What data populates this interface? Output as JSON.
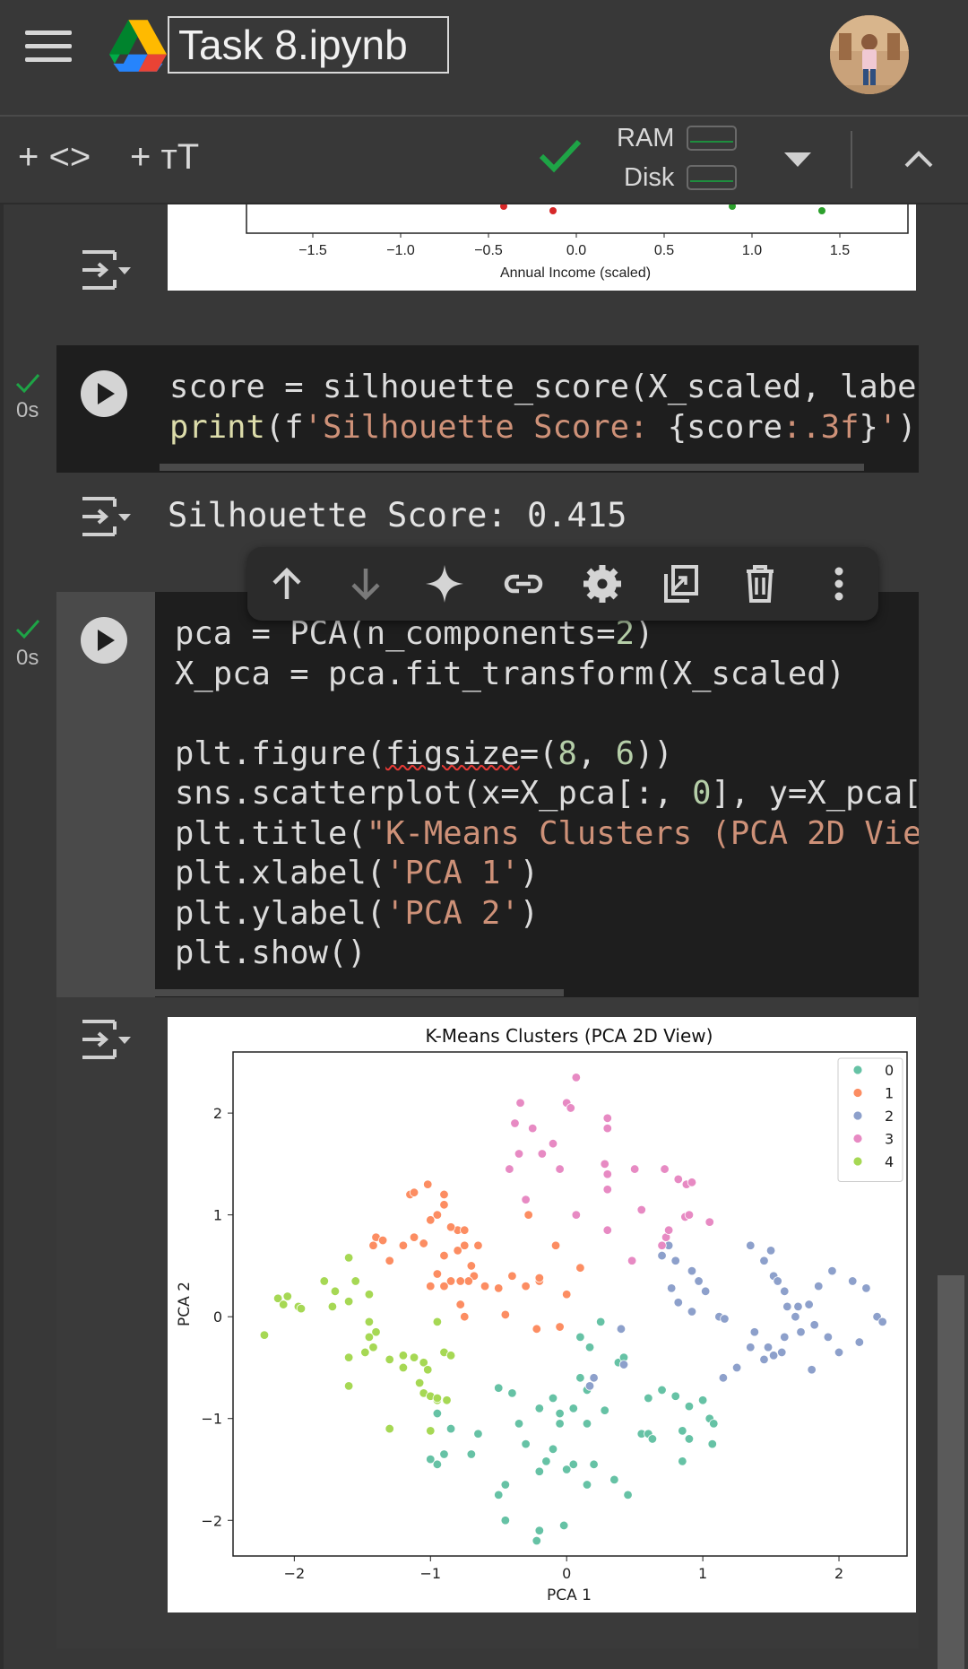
{
  "header": {
    "title": "Task 8.ipynb"
  },
  "toolbar": {
    "add_code": "+ <>",
    "add_text": "+ тT",
    "ram_label": "RAM",
    "disk_label": "Disk"
  },
  "top_output": {
    "xticks": [
      "−1.5",
      "−1.0",
      "−0.5",
      "0.0",
      "0.5",
      "1.0",
      "1.5"
    ],
    "xlabel": "Annual Income (scaled)"
  },
  "cells": [
    {
      "exec_time": "0s",
      "code_lines": [
        "score = silhouette_score(X_scaled, labe",
        "print(f'Silhouette Score: {score:.3f}')"
      ],
      "output": "Silhouette Score: 0.415"
    },
    {
      "exec_time": "0s",
      "code_lines": [
        "pca = PCA(n_components=2)",
        "X_pca = pca.fit_transform(X_scaled)",
        "",
        "plt.figure(figsize=(8, 6))",
        "sns.scatterplot(x=X_pca[:, 0], y=X_pca[",
        "plt.title(\"K-Means Clusters (PCA 2D Vie",
        "plt.xlabel('PCA 1')",
        "plt.ylabel('PCA 2')",
        "plt.show()"
      ]
    }
  ],
  "chart_data": {
    "type": "scatter",
    "title": "K-Means Clusters (PCA 2D View)",
    "xlabel": "PCA 1",
    "ylabel": "PCA 2",
    "xlim": [
      -2.45,
      2.5
    ],
    "ylim": [
      -2.35,
      2.6
    ],
    "xticks": [
      -2,
      -1,
      0,
      1,
      2
    ],
    "yticks": [
      -2,
      -1,
      0,
      1,
      2
    ],
    "xtick_labels": [
      "−2",
      "−1",
      "0",
      "1",
      "2"
    ],
    "ytick_labels": [
      "−2",
      "−1",
      "0",
      "1",
      "2"
    ],
    "grid": false,
    "legend_position": "top-right",
    "series": [
      {
        "name": "0",
        "color": "#66c2a5",
        "points": [
          [
            0.25,
            -0.05
          ],
          [
            0.1,
            -0.2
          ],
          [
            0.17,
            -0.3
          ],
          [
            0.38,
            -0.45
          ],
          [
            0.42,
            -0.4
          ],
          [
            0.1,
            -0.6
          ],
          [
            0.15,
            -0.72
          ],
          [
            -0.1,
            -0.8
          ],
          [
            0.05,
            -0.9
          ],
          [
            -0.5,
            -0.7
          ],
          [
            -0.4,
            -0.75
          ],
          [
            -0.2,
            -0.9
          ],
          [
            -0.05,
            -0.95
          ],
          [
            0.28,
            -0.92
          ],
          [
            0.6,
            -0.8
          ],
          [
            0.8,
            -0.78
          ],
          [
            0.7,
            -0.72
          ],
          [
            0.9,
            -0.88
          ],
          [
            1.0,
            -0.82
          ],
          [
            1.05,
            -1.0
          ],
          [
            1.08,
            -1.05
          ],
          [
            -0.95,
            -0.95
          ],
          [
            -0.85,
            -1.1
          ],
          [
            -0.65,
            -1.15
          ],
          [
            -0.35,
            -1.05
          ],
          [
            -0.05,
            -1.05
          ],
          [
            0.15,
            -1.05
          ],
          [
            0.55,
            -1.15
          ],
          [
            0.85,
            -1.12
          ],
          [
            0.9,
            -1.2
          ],
          [
            1.07,
            -1.25
          ],
          [
            -0.3,
            -1.25
          ],
          [
            -0.1,
            -1.3
          ],
          [
            0.05,
            -1.45
          ],
          [
            0.2,
            -1.45
          ],
          [
            0.35,
            -1.6
          ],
          [
            0.45,
            -1.75
          ],
          [
            0.15,
            -1.65
          ],
          [
            -0.15,
            -1.42
          ],
          [
            -0.2,
            -1.52
          ],
          [
            0.0,
            -1.5
          ],
          [
            -0.45,
            -1.65
          ],
          [
            -0.5,
            -1.75
          ],
          [
            -0.9,
            -1.35
          ],
          [
            -1.0,
            -1.4
          ],
          [
            -0.95,
            -1.45
          ],
          [
            -0.7,
            -1.35
          ],
          [
            -0.2,
            -2.1
          ],
          [
            -0.22,
            -2.2
          ],
          [
            -0.02,
            -2.05
          ],
          [
            -0.45,
            -2.0
          ],
          [
            0.6,
            -1.15
          ],
          [
            0.63,
            -1.2
          ],
          [
            0.85,
            -1.42
          ]
        ]
      },
      {
        "name": "1",
        "color": "#fc8d62",
        "points": [
          [
            -1.15,
            1.2
          ],
          [
            -1.12,
            1.22
          ],
          [
            -1.02,
            1.3
          ],
          [
            -0.9,
            1.2
          ],
          [
            -0.9,
            1.1
          ],
          [
            -0.95,
            1.0
          ],
          [
            -1.0,
            0.95
          ],
          [
            -0.8,
            0.85
          ],
          [
            -0.85,
            0.88
          ],
          [
            -0.75,
            0.85
          ],
          [
            -0.75,
            0.7
          ],
          [
            -0.8,
            0.65
          ],
          [
            -0.65,
            0.7
          ],
          [
            -0.9,
            0.6
          ],
          [
            -1.05,
            0.72
          ],
          [
            -1.12,
            0.78
          ],
          [
            -1.2,
            0.7
          ],
          [
            -1.4,
            0.78
          ],
          [
            -1.42,
            0.7
          ],
          [
            -1.35,
            0.75
          ],
          [
            -1.3,
            0.55
          ],
          [
            -0.7,
            0.5
          ],
          [
            -0.68,
            0.4
          ],
          [
            -0.72,
            0.35
          ],
          [
            -0.78,
            0.35
          ],
          [
            -0.85,
            0.35
          ],
          [
            -0.95,
            0.42
          ],
          [
            -1.0,
            0.3
          ],
          [
            -0.9,
            0.3
          ],
          [
            -0.78,
            0.12
          ],
          [
            -0.6,
            0.3
          ],
          [
            -0.5,
            0.28
          ],
          [
            -0.4,
            0.4
          ],
          [
            -0.3,
            0.3
          ],
          [
            -0.2,
            0.35
          ],
          [
            -0.2,
            0.38
          ],
          [
            -0.45,
            0.02
          ],
          [
            -0.22,
            -0.12
          ],
          [
            -0.28,
            1.0
          ],
          [
            -0.08,
            0.7
          ],
          [
            0.1,
            0.48
          ],
          [
            0.0,
            0.22
          ],
          [
            -0.05,
            -0.1
          ],
          [
            -0.75,
            0.0
          ]
        ]
      },
      {
        "name": "2",
        "color": "#8da0cb",
        "points": [
          [
            0.75,
            0.7
          ],
          [
            0.7,
            0.6
          ],
          [
            0.8,
            0.55
          ],
          [
            0.92,
            0.45
          ],
          [
            0.97,
            0.35
          ],
          [
            1.02,
            0.25
          ],
          [
            0.77,
            0.28
          ],
          [
            0.82,
            0.14
          ],
          [
            0.92,
            0.05
          ],
          [
            1.12,
            0.0
          ],
          [
            1.16,
            -0.02
          ],
          [
            1.45,
            0.55
          ],
          [
            1.5,
            0.65
          ],
          [
            1.52,
            0.4
          ],
          [
            1.55,
            0.35
          ],
          [
            1.6,
            0.25
          ],
          [
            1.62,
            0.1
          ],
          [
            1.35,
            0.7
          ],
          [
            1.68,
            0.0
          ],
          [
            1.7,
            0.1
          ],
          [
            1.78,
            0.12
          ],
          [
            1.85,
            0.3
          ],
          [
            1.95,
            0.45
          ],
          [
            1.82,
            -0.08
          ],
          [
            1.72,
            -0.15
          ],
          [
            1.6,
            -0.2
          ],
          [
            1.58,
            -0.35
          ],
          [
            1.52,
            -0.38
          ],
          [
            1.45,
            -0.42
          ],
          [
            1.48,
            -0.3
          ],
          [
            1.38,
            -0.15
          ],
          [
            1.35,
            -0.3
          ],
          [
            1.25,
            -0.5
          ],
          [
            1.92,
            -0.2
          ],
          [
            2.1,
            0.35
          ],
          [
            2.2,
            0.28
          ],
          [
            2.28,
            0.0
          ],
          [
            2.32,
            -0.05
          ],
          [
            2.0,
            -0.35
          ],
          [
            2.15,
            -0.25
          ],
          [
            1.8,
            -0.52
          ],
          [
            0.4,
            -0.12
          ],
          [
            0.2,
            -0.6
          ],
          [
            0.17,
            -0.68
          ],
          [
            0.42,
            -0.47
          ],
          [
            1.15,
            -0.6
          ]
        ]
      },
      {
        "name": "3",
        "color": "#e78ac3",
        "points": [
          [
            -0.38,
            1.9
          ],
          [
            -0.34,
            2.1
          ],
          [
            -0.25,
            1.85
          ],
          [
            -0.18,
            1.6
          ],
          [
            -0.35,
            1.6
          ],
          [
            -0.1,
            1.7
          ],
          [
            -0.05,
            1.45
          ],
          [
            0.0,
            2.1
          ],
          [
            0.03,
            2.05
          ],
          [
            0.07,
            2.35
          ],
          [
            0.3,
            1.95
          ],
          [
            0.3,
            1.85
          ],
          [
            0.28,
            1.5
          ],
          [
            0.3,
            1.4
          ],
          [
            0.5,
            1.45
          ],
          [
            0.72,
            1.45
          ],
          [
            0.82,
            1.35
          ],
          [
            0.88,
            1.3
          ],
          [
            0.92,
            1.32
          ],
          [
            0.3,
            1.25
          ],
          [
            0.55,
            1.05
          ],
          [
            0.87,
            0.98
          ],
          [
            0.9,
            1.0
          ],
          [
            1.05,
            0.93
          ],
          [
            0.3,
            0.85
          ],
          [
            0.48,
            0.55
          ],
          [
            0.73,
            0.78
          ],
          [
            0.7,
            0.7
          ],
          [
            0.75,
            0.85
          ],
          [
            0.07,
            1.0
          ],
          [
            -0.42,
            1.45
          ],
          [
            -0.3,
            1.15
          ]
        ]
      },
      {
        "name": "4",
        "color": "#a6d854",
        "points": [
          [
            -2.22,
            -0.18
          ],
          [
            -2.12,
            0.18
          ],
          [
            -2.05,
            0.2
          ],
          [
            -2.08,
            0.12
          ],
          [
            -1.97,
            0.1
          ],
          [
            -1.95,
            0.08
          ],
          [
            -1.78,
            0.35
          ],
          [
            -1.7,
            0.25
          ],
          [
            -1.72,
            0.1
          ],
          [
            -1.6,
            0.15
          ],
          [
            -1.6,
            0.58
          ],
          [
            -1.55,
            0.35
          ],
          [
            -1.45,
            0.22
          ],
          [
            -1.45,
            -0.05
          ],
          [
            -1.4,
            -0.15
          ],
          [
            -1.45,
            -0.2
          ],
          [
            -1.42,
            -0.3
          ],
          [
            -1.48,
            -0.35
          ],
          [
            -1.6,
            -0.4
          ],
          [
            -1.3,
            -0.42
          ],
          [
            -1.2,
            -0.38
          ],
          [
            -1.12,
            -0.4
          ],
          [
            -1.05,
            -0.45
          ],
          [
            -1.02,
            -0.52
          ],
          [
            -0.95,
            -0.05
          ],
          [
            -0.9,
            -0.35
          ],
          [
            -1.08,
            -0.65
          ],
          [
            -1.05,
            -0.75
          ],
          [
            -1.0,
            -0.78
          ],
          [
            -0.95,
            -0.82
          ],
          [
            -0.88,
            -0.82
          ],
          [
            -0.85,
            -0.38
          ],
          [
            -1.2,
            -0.5
          ],
          [
            -1.6,
            -0.68
          ],
          [
            -1.3,
            -1.1
          ],
          [
            -1.0,
            -1.12
          ],
          [
            -0.95,
            -0.8
          ]
        ]
      }
    ]
  }
}
